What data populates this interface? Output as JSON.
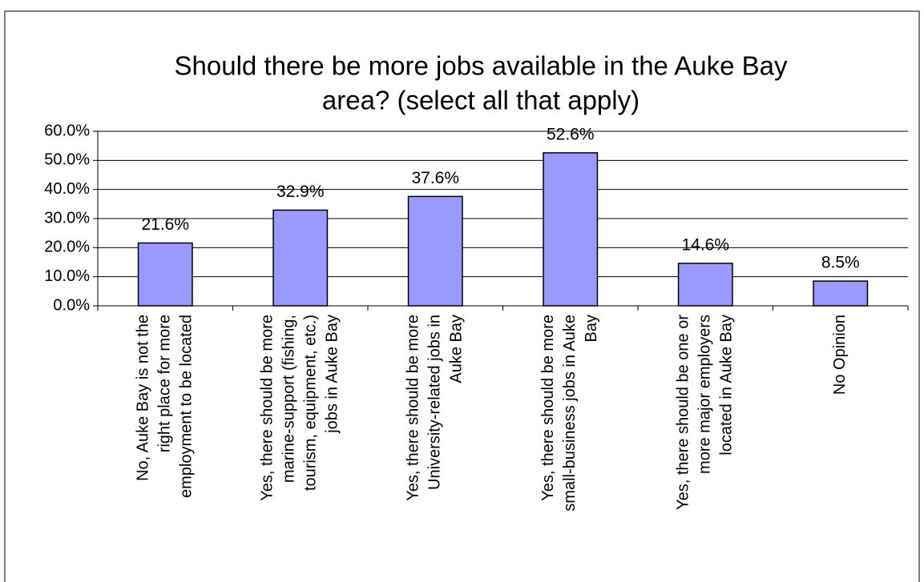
{
  "chart_data": {
    "type": "bar",
    "title": [
      "Should there be more jobs available in the Auke Bay",
      "area? (select all that apply)"
    ],
    "categories": [
      [
        "No, Auke Bay is not the",
        "right place for more",
        "employment to be located"
      ],
      [
        "Yes, there should be more",
        "marine-support (fishing,",
        "tourism, equipment, etc.)",
        "jobs in Auke Bay"
      ],
      [
        "Yes, there should be more",
        "University-related jobs in",
        "Auke Bay"
      ],
      [
        "Yes, there should be more",
        "small-business jobs in Auke",
        "Bay"
      ],
      [
        "Yes, there should be one or",
        "more major employers",
        "located in Auke Bay"
      ],
      [
        "No Opinion"
      ]
    ],
    "values": [
      21.6,
      32.9,
      37.6,
      52.6,
      14.6,
      8.5
    ],
    "value_labels": [
      "21.6%",
      "32.9%",
      "37.6%",
      "52.6%",
      "14.6%",
      "8.5%"
    ],
    "color": "#9999ff",
    "ylim": [
      0,
      60
    ],
    "yticks": [
      {
        "value": 0,
        "label": "0.0%"
      },
      {
        "value": 10,
        "label": "10.0%"
      },
      {
        "value": 20,
        "label": "20.0%"
      },
      {
        "value": 30,
        "label": "30.0%"
      },
      {
        "value": 40,
        "label": "40.0%"
      },
      {
        "value": 50,
        "label": "50.0%"
      },
      {
        "value": 60,
        "label": "60.0%"
      }
    ],
    "grid": true
  }
}
